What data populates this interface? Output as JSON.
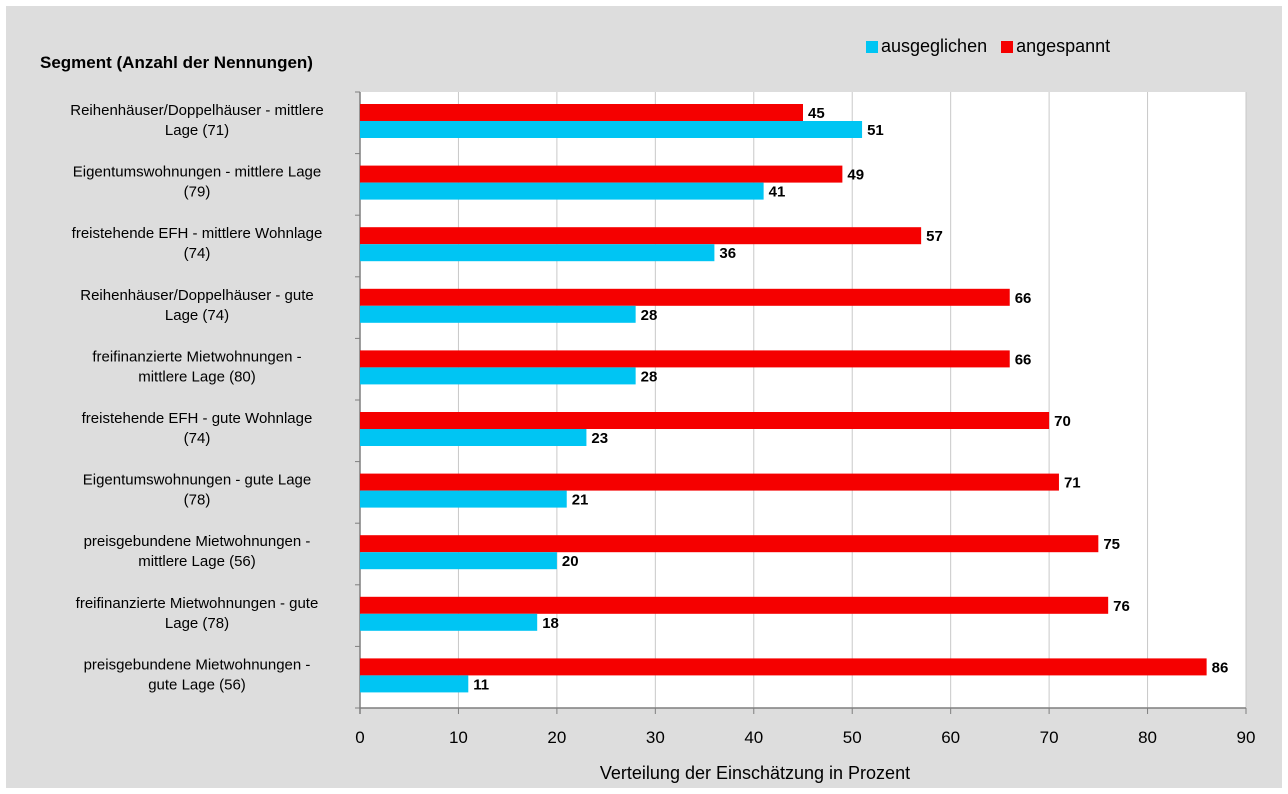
{
  "chart_data": {
    "type": "bar",
    "orientation": "horizontal",
    "title": "Segment (Anzahl der Nennungen)",
    "xlabel": "Verteilung der Einschätzung in Prozent",
    "xlim": [
      0,
      90
    ],
    "xticks": [
      0,
      10,
      20,
      30,
      40,
      50,
      60,
      70,
      80,
      90
    ],
    "grid": "vertical",
    "legend_position": "top-right",
    "categories": [
      [
        "Reihenhäuser/Doppelhäuser - mittlere",
        "Lage (71)"
      ],
      [
        "Eigentumswohnungen - mittlere Lage",
        "(79)"
      ],
      [
        "freistehende EFH - mittlere Wohnlage",
        "(74)"
      ],
      [
        "Reihenhäuser/Doppelhäuser - gute",
        "Lage (74)"
      ],
      [
        "freifinanzierte Mietwohnungen  -",
        "mittlere Lage (80)"
      ],
      [
        "freistehende EFH - gute Wohnlage",
        "(74)"
      ],
      [
        "Eigentumswohnungen - gute Lage",
        "(78)"
      ],
      [
        "preisgebundene Mietwohnungen -",
        "mittlere Lage (56)"
      ],
      [
        "freifinanzierte Mietwohnungen - gute",
        "Lage (78)"
      ],
      [
        "preisgebundene Mietwohnungen -",
        "gute Lage (56)"
      ]
    ],
    "series": [
      {
        "name": "ausgeglichen",
        "color": "#00c5f3",
        "values": [
          51,
          41,
          36,
          28,
          28,
          23,
          21,
          20,
          18,
          11
        ]
      },
      {
        "name": "angespannt",
        "color": "#f50000",
        "values": [
          45,
          49,
          57,
          66,
          66,
          70,
          71,
          75,
          76,
          86
        ]
      }
    ]
  }
}
